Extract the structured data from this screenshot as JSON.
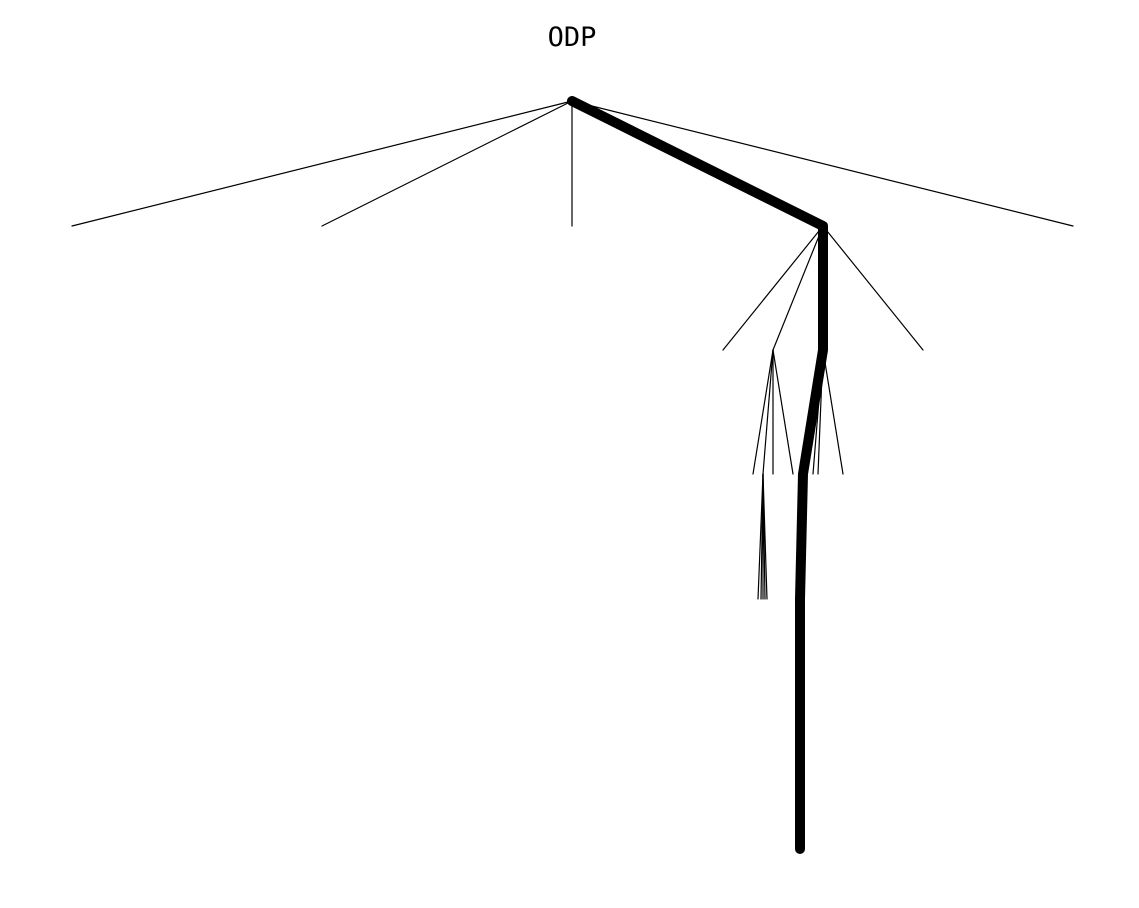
{
  "diagram": {
    "type": "tree",
    "root_label": "ODP",
    "highlight_color": "#000000",
    "line_color": "#000000",
    "background": "#ffffff"
  }
}
